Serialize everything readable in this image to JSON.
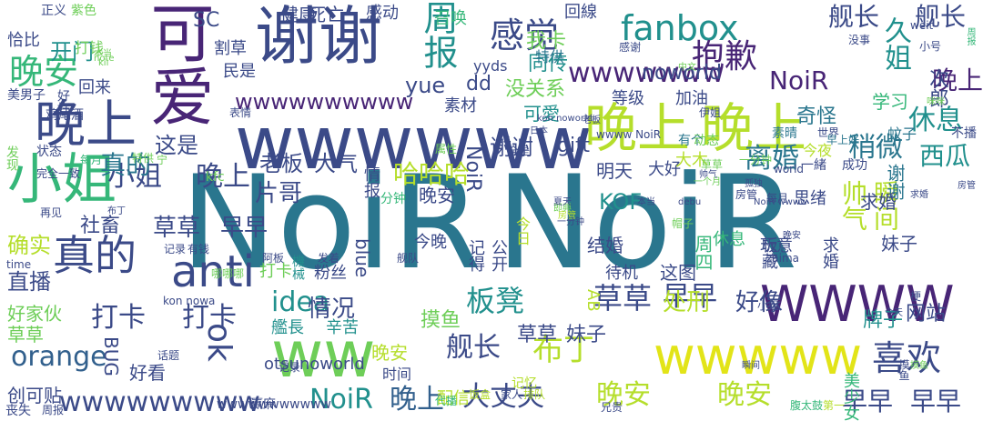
{
  "colors": {
    "dark_purple": "#482576",
    "navy": "#3b4a88",
    "blue": "#32608d",
    "teal": "#2a768e",
    "sea": "#21908d",
    "green": "#35b779",
    "lime": "#6ece58",
    "yellow_green": "#b5de2b",
    "yellow": "#e2e418"
  },
  "words": [
    "NoiR",
    "NoiR",
    "wwwwww",
    "谢谢",
    "可爱",
    "ww",
    "晚上",
    "晚上",
    "晚上",
    "小姐",
    "WWWW",
    "wwwww",
    "anti",
    "真的",
    "fanbox",
    "抱歉",
    "感觉",
    "周报",
    "晚安",
    "喜欢",
    "打卡",
    "打卡",
    "小姐",
    "晚上",
    "草草",
    "早早",
    "板凳",
    "布丁",
    "orange",
    "idea",
    "wwwwwww",
    "wwwwwwwww",
    "wwwwwwwwww",
    "ok",
    "NoiR",
    "晚上",
    "大丈夫",
    "晚安",
    "晚安",
    "早早",
    "早早",
    "舰长",
    "舰长",
    "舰长",
    "久姐",
    "NoiR",
    "晚上",
    "休息",
    "稍微",
    "离婚",
    "西瓜",
    "谢谢",
    "gift",
    "哈哈哈",
    "老板",
    "大气",
    "这是",
    "yue",
    "dd",
    "我卡",
    "同传",
    "没关系",
    "可愛",
    "健康",
    "死亡",
    "感动",
    "召唤",
    "回線",
    "开门",
    "SC",
    "正义",
    "紫色",
    "恰比",
    "打钱",
    "回来",
    "民是",
    "割草",
    "noworld",
    "次郎",
    "学习",
    "奇怪",
    "等级",
    "加油",
    "素材",
    "yyds",
    "直播",
    "确实",
    "社畜",
    "真的",
    "片哥",
    "草草",
    "早早",
    "KOF",
    "明天",
    "大好",
    "大木",
    "结婚",
    "今晚",
    "晚安",
    "NoiR",
    "blue",
    "待机",
    "这图",
    "周四",
    "休息",
    "帅气",
    "瞬间",
    "求婚",
    "板藏",
    "玩意",
    "妹子",
    "谢谢",
    "求婚",
    "思绪",
    "情报",
    "分钟",
    "记得",
    "公开",
    "处刑",
    "好像",
    "牌子",
    "网站",
    "妹子",
    "草草",
    "草草",
    "好家伙",
    "BUG",
    "打卡",
    "粉丝",
    "情况",
    "摸鱼",
    "艦長",
    "辛苦",
    "晚安",
    "好看",
    "创可贴",
    "时间",
    "配信",
    "美少女",
    "赢麻",
    "wwwwwwwwwww",
    "otsunoworld",
    "AB",
    "今日",
    "记忆",
    "丧失",
    "代播",
    "腹太鼓",
    "第一",
    "今夜",
    "一緒",
    "成功",
    "蚊子",
    "不播",
    "素晴",
    "世界",
    "world",
    "有个",
    "动态",
    "表情",
    "状态",
    "鸡尾酒",
    "美男子",
    "好好",
    "发现",
    "完全一致",
    "每月",
    "特供",
    "宁",
    "kfc",
    "再见",
    "布丁",
    "记录",
    "有钱",
    "阿板",
    "发着",
    "舰队",
    "zaima",
    "time",
    "kon nowa",
    "话题",
    "记录",
    "周报",
    "家人",
    "兄贵",
    "饭盒",
    "排队",
    "中文",
    "kon noworld",
    "日本",
    "wwww NoiR",
    "特供",
    "属性",
    "全是",
    "帽子",
    "一分钟",
    "一个月",
    "房管",
    "每月",
    "周报",
    "weit",
    "小号",
    "咪咪",
    "老板",
    "感谢",
    "伊姐",
    "早上好",
    "没事",
    "本当",
    "note",
    "kii",
    "即興",
    "夏天",
    "房管",
    "一分钟",
    "本当",
    "debu",
    "NoiR wwww",
    "孤独",
    "求婚",
    "梗",
    "摸鱼",
    "摸鱼",
    "瞬间",
    "帅气",
    "哪哪哪",
    "機械",
    "草草",
    "晚安",
    "小姐",
    "今天",
    "房管"
  ]
}
